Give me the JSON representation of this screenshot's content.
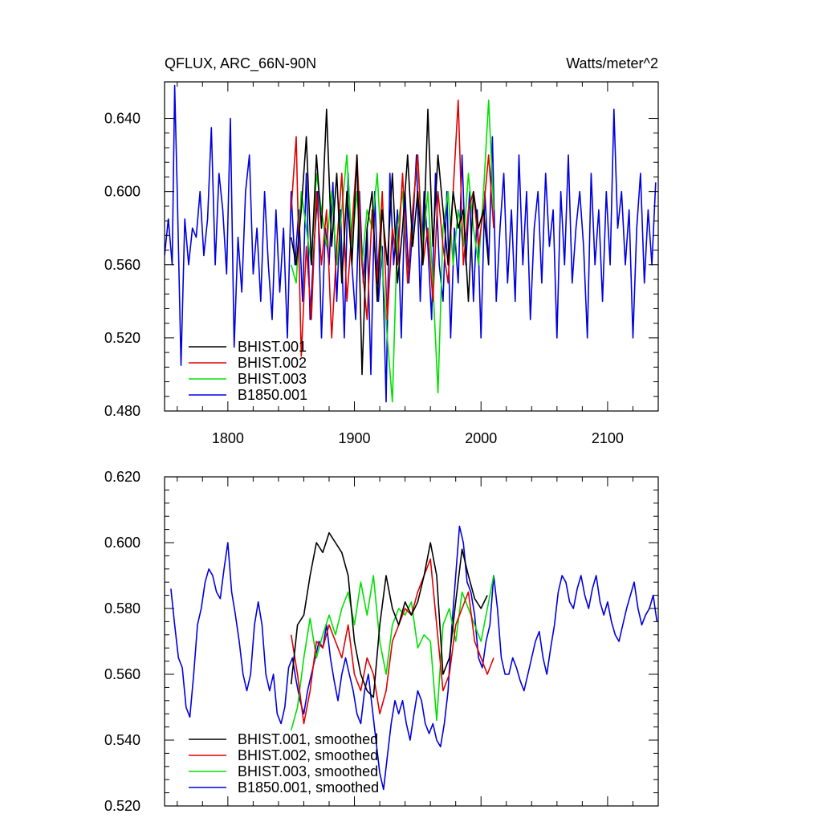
{
  "chart_data": [
    {
      "type": "line",
      "title": "QFLUX, ARC_66N-90N",
      "units": "Watts/meter^2",
      "xlim": [
        1750,
        2140
      ],
      "ylim": [
        0.48,
        0.66
      ],
      "xticks": [
        1800,
        1900,
        2000,
        2100
      ],
      "xtick_labels": [
        "1800",
        "1900",
        "2000",
        "2100"
      ],
      "yticks": [
        0.48,
        0.52,
        0.56,
        0.6,
        0.64
      ],
      "ytick_labels": [
        "0.480",
        "0.520",
        "0.560",
        "0.600",
        "0.640"
      ],
      "legend_position": "bottom-left",
      "series": [
        {
          "name": "BHIST.001",
          "color": "#000000",
          "x": [
            1850,
            1854,
            1858,
            1862,
            1866,
            1870,
            1874,
            1878,
            1882,
            1886,
            1890,
            1894,
            1898,
            1902,
            1906,
            1910,
            1914,
            1918,
            1922,
            1926,
            1930,
            1934,
            1938,
            1942,
            1946,
            1950,
            1954,
            1958,
            1962,
            1966,
            1970,
            1974,
            1978,
            1982,
            1986,
            1990,
            1994,
            1998,
            2002,
            2006
          ],
          "y": [
            0.575,
            0.56,
            0.59,
            0.63,
            0.56,
            0.62,
            0.58,
            0.645,
            0.57,
            0.61,
            0.55,
            0.6,
            0.56,
            0.62,
            0.5,
            0.58,
            0.6,
            0.54,
            0.59,
            0.56,
            0.61,
            0.55,
            0.58,
            0.62,
            0.57,
            0.6,
            0.56,
            0.645,
            0.57,
            0.62,
            0.59,
            0.56,
            0.6,
            0.58,
            0.59,
            0.54,
            0.6,
            0.58,
            0.59,
            0.56
          ]
        },
        {
          "name": "BHIST.002",
          "color": "#e00000",
          "x": [
            1850,
            1854,
            1858,
            1862,
            1866,
            1870,
            1874,
            1878,
            1882,
            1886,
            1890,
            1894,
            1898,
            1902,
            1906,
            1910,
            1914,
            1918,
            1922,
            1926,
            1930,
            1934,
            1938,
            1942,
            1946,
            1950,
            1954,
            1958,
            1962,
            1966,
            1970,
            1974,
            1978,
            1982,
            1986,
            1990,
            1994,
            1998,
            2002,
            2006,
            2010
          ],
          "y": [
            0.59,
            0.63,
            0.51,
            0.57,
            0.53,
            0.6,
            0.56,
            0.59,
            0.52,
            0.57,
            0.61,
            0.54,
            0.58,
            0.62,
            0.56,
            0.53,
            0.59,
            0.55,
            0.6,
            0.53,
            0.58,
            0.56,
            0.61,
            0.55,
            0.59,
            0.62,
            0.56,
            0.58,
            0.54,
            0.6,
            0.57,
            0.55,
            0.6,
            0.65,
            0.56,
            0.59,
            0.6,
            0.57,
            0.59,
            0.62,
            0.58
          ]
        },
        {
          "name": "BHIST.003",
          "color": "#00e000",
          "x": [
            1850,
            1854,
            1858,
            1862,
            1866,
            1870,
            1874,
            1878,
            1882,
            1886,
            1890,
            1894,
            1898,
            1902,
            1906,
            1910,
            1914,
            1918,
            1922,
            1926,
            1930,
            1934,
            1938,
            1942,
            1946,
            1950,
            1954,
            1958,
            1962,
            1966,
            1970,
            1974,
            1978,
            1982,
            1986,
            1990,
            1994,
            1998,
            2002,
            2006,
            2010
          ],
          "y": [
            0.56,
            0.55,
            0.6,
            0.58,
            0.56,
            0.61,
            0.59,
            0.57,
            0.6,
            0.56,
            0.59,
            0.62,
            0.57,
            0.6,
            0.56,
            0.59,
            0.58,
            0.61,
            0.56,
            0.52,
            0.485,
            0.58,
            0.6,
            0.55,
            0.59,
            0.62,
            0.57,
            0.6,
            0.55,
            0.49,
            0.58,
            0.6,
            0.56,
            0.59,
            0.57,
            0.61,
            0.58,
            0.56,
            0.6,
            0.65,
            0.59
          ]
        },
        {
          "name": "B1850.001",
          "color": "#0000e0",
          "x": [
            1750,
            1753,
            1756,
            1758,
            1760,
            1763,
            1766,
            1769,
            1772,
            1775,
            1778,
            1781,
            1784,
            1787,
            1790,
            1793,
            1796,
            1799,
            1802,
            1805,
            1808,
            1811,
            1814,
            1817,
            1820,
            1823,
            1826,
            1829,
            1832,
            1835,
            1838,
            1841,
            1844,
            1847,
            1850,
            1853,
            1856,
            1859,
            1862,
            1865,
            1868,
            1871,
            1874,
            1877,
            1880,
            1883,
            1886,
            1889,
            1892,
            1895,
            1898,
            1901,
            1904,
            1907,
            1910,
            1913,
            1916,
            1919,
            1922,
            1925,
            1928,
            1931,
            1934,
            1937,
            1940,
            1943,
            1946,
            1949,
            1952,
            1955,
            1958,
            1961,
            1964,
            1967,
            1970,
            1973,
            1976,
            1979,
            1982,
            1985,
            1988,
            1991,
            1994,
            1997,
            2000,
            2003,
            2006,
            2009,
            2012,
            2015,
            2018,
            2021,
            2024,
            2027,
            2030,
            2033,
            2036,
            2039,
            2042,
            2045,
            2048,
            2051,
            2054,
            2057,
            2060,
            2063,
            2066,
            2069,
            2072,
            2075,
            2078,
            2081,
            2084,
            2087,
            2090,
            2093,
            2096,
            2099,
            2102,
            2105,
            2108,
            2111,
            2114,
            2117,
            2120,
            2123,
            2126,
            2129,
            2132,
            2135,
            2138
          ],
          "y": [
            0.565,
            0.585,
            0.56,
            0.658,
            0.6,
            0.505,
            0.585,
            0.56,
            0.58,
            0.575,
            0.6,
            0.565,
            0.585,
            0.635,
            0.56,
            0.61,
            0.59,
            0.555,
            0.64,
            0.515,
            0.575,
            0.545,
            0.6,
            0.62,
            0.555,
            0.58,
            0.54,
            0.6,
            0.56,
            0.53,
            0.59,
            0.545,
            0.58,
            0.52,
            0.6,
            0.56,
            0.59,
            0.54,
            0.61,
            0.53,
            0.57,
            0.6,
            0.52,
            0.58,
            0.56,
            0.605,
            0.54,
            0.59,
            0.52,
            0.61,
            0.56,
            0.53,
            0.6,
            0.55,
            0.58,
            0.5,
            0.6,
            0.54,
            0.57,
            0.485,
            0.61,
            0.56,
            0.59,
            0.52,
            0.6,
            0.55,
            0.58,
            0.62,
            0.54,
            0.6,
            0.57,
            0.53,
            0.61,
            0.56,
            0.54,
            0.6,
            0.52,
            0.58,
            0.55,
            0.62,
            0.56,
            0.6,
            0.54,
            0.59,
            0.52,
            0.6,
            0.56,
            0.63,
            0.54,
            0.58,
            0.61,
            0.55,
            0.59,
            0.54,
            0.62,
            0.56,
            0.6,
            0.53,
            0.58,
            0.6,
            0.55,
            0.61,
            0.57,
            0.59,
            0.52,
            0.6,
            0.56,
            0.62,
            0.55,
            0.58,
            0.6,
            0.57,
            0.52,
            0.61,
            0.56,
            0.59,
            0.54,
            0.6,
            0.56,
            0.645,
            0.58,
            0.6,
            0.56,
            0.59,
            0.52,
            0.58,
            0.61,
            0.55,
            0.59,
            0.56,
            0.605
          ]
        }
      ]
    },
    {
      "type": "line",
      "title": "",
      "xlim": [
        1750,
        2140
      ],
      "ylim": [
        0.52,
        0.62
      ],
      "xticks": [
        1800,
        1900,
        2000,
        2100
      ],
      "yticks": [
        0.52,
        0.54,
        0.56,
        0.58,
        0.6,
        0.62
      ],
      "ytick_labels": [
        "0.520",
        "0.540",
        "0.560",
        "0.580",
        "0.600",
        "0.620"
      ],
      "legend_position": "bottom-left",
      "series": [
        {
          "name": "BHIST.001, smoothed",
          "color": "#000000",
          "x": [
            1850,
            1855,
            1860,
            1865,
            1870,
            1875,
            1880,
            1885,
            1890,
            1895,
            1900,
            1905,
            1910,
            1915,
            1920,
            1925,
            1930,
            1935,
            1940,
            1945,
            1950,
            1955,
            1960,
            1965,
            1970,
            1975,
            1980,
            1985,
            1990,
            1995,
            2000,
            2005
          ],
          "y": [
            0.557,
            0.575,
            0.578,
            0.59,
            0.6,
            0.597,
            0.603,
            0.6,
            0.597,
            0.59,
            0.57,
            0.56,
            0.555,
            0.553,
            0.575,
            0.59,
            0.58,
            0.575,
            0.582,
            0.578,
            0.582,
            0.59,
            0.6,
            0.59,
            0.56,
            0.565,
            0.582,
            0.598,
            0.59,
            0.583,
            0.58,
            0.584
          ]
        },
        {
          "name": "BHIST.002, smoothed",
          "color": "#e00000",
          "x": [
            1850,
            1855,
            1860,
            1865,
            1870,
            1875,
            1880,
            1885,
            1890,
            1895,
            1900,
            1905,
            1910,
            1915,
            1920,
            1925,
            1930,
            1935,
            1940,
            1945,
            1950,
            1955,
            1960,
            1965,
            1970,
            1975,
            1980,
            1985,
            1990,
            1995,
            2000,
            2005,
            2010
          ],
          "y": [
            0.572,
            0.56,
            0.545,
            0.555,
            0.57,
            0.568,
            0.575,
            0.57,
            0.565,
            0.575,
            0.56,
            0.555,
            0.565,
            0.56,
            0.548,
            0.555,
            0.57,
            0.575,
            0.58,
            0.578,
            0.585,
            0.59,
            0.595,
            0.575,
            0.555,
            0.56,
            0.575,
            0.58,
            0.585,
            0.57,
            0.565,
            0.56,
            0.565
          ]
        },
        {
          "name": "BHIST.003, smoothed",
          "color": "#00e000",
          "x": [
            1850,
            1855,
            1860,
            1865,
            1870,
            1875,
            1880,
            1885,
            1890,
            1895,
            1900,
            1905,
            1910,
            1915,
            1920,
            1925,
            1930,
            1935,
            1940,
            1945,
            1950,
            1955,
            1960,
            1965,
            1970,
            1975,
            1980,
            1985,
            1990,
            1995,
            2000,
            2005,
            2010
          ],
          "y": [
            0.543,
            0.55,
            0.565,
            0.577,
            0.565,
            0.572,
            0.578,
            0.572,
            0.58,
            0.585,
            0.575,
            0.588,
            0.578,
            0.59,
            0.57,
            0.56,
            0.575,
            0.58,
            0.578,
            0.582,
            0.568,
            0.572,
            0.57,
            0.546,
            0.575,
            0.58,
            0.57,
            0.585,
            0.58,
            0.575,
            0.57,
            0.58,
            0.59
          ]
        },
        {
          "name": "B1850.001, smoothed",
          "color": "#0000e0",
          "x": [
            1755,
            1758,
            1761,
            1764,
            1767,
            1770,
            1773,
            1776,
            1779,
            1782,
            1785,
            1788,
            1791,
            1794,
            1797,
            1800,
            1803,
            1806,
            1809,
            1812,
            1815,
            1818,
            1821,
            1824,
            1827,
            1830,
            1833,
            1836,
            1839,
            1842,
            1845,
            1848,
            1851,
            1854,
            1857,
            1860,
            1863,
            1866,
            1869,
            1872,
            1875,
            1878,
            1881,
            1884,
            1887,
            1890,
            1893,
            1896,
            1899,
            1902,
            1905,
            1908,
            1911,
            1914,
            1917,
            1920,
            1923,
            1926,
            1929,
            1932,
            1935,
            1938,
            1941,
            1944,
            1947,
            1950,
            1953,
            1956,
            1959,
            1962,
            1965,
            1968,
            1971,
            1974,
            1977,
            1980,
            1983,
            1986,
            1989,
            1992,
            1995,
            1998,
            2001,
            2004,
            2007,
            2010,
            2013,
            2016,
            2019,
            2022,
            2025,
            2028,
            2031,
            2034,
            2037,
            2040,
            2043,
            2046,
            2049,
            2052,
            2055,
            2058,
            2061,
            2064,
            2067,
            2070,
            2073,
            2076,
            2079,
            2082,
            2085,
            2088,
            2091,
            2094,
            2097,
            2100,
            2103,
            2106,
            2109,
            2112,
            2115,
            2118,
            2121,
            2124,
            2127,
            2130,
            2133,
            2136,
            2139
          ],
          "y": [
            0.586,
            0.575,
            0.565,
            0.562,
            0.55,
            0.547,
            0.56,
            0.575,
            0.58,
            0.588,
            0.592,
            0.59,
            0.585,
            0.583,
            0.592,
            0.6,
            0.585,
            0.578,
            0.57,
            0.56,
            0.555,
            0.56,
            0.575,
            0.582,
            0.575,
            0.56,
            0.555,
            0.56,
            0.548,
            0.545,
            0.55,
            0.562,
            0.565,
            0.558,
            0.552,
            0.548,
            0.555,
            0.56,
            0.565,
            0.57,
            0.568,
            0.575,
            0.565,
            0.558,
            0.552,
            0.56,
            0.565,
            0.56,
            0.555,
            0.548,
            0.545,
            0.555,
            0.56,
            0.55,
            0.54,
            0.53,
            0.525,
            0.535,
            0.545,
            0.552,
            0.548,
            0.552,
            0.545,
            0.54,
            0.548,
            0.555,
            0.552,
            0.545,
            0.542,
            0.545,
            0.54,
            0.538,
            0.545,
            0.555,
            0.575,
            0.59,
            0.605,
            0.6,
            0.588,
            0.585,
            0.578,
            0.565,
            0.562,
            0.57,
            0.575,
            0.59,
            0.58,
            0.565,
            0.56,
            0.56,
            0.565,
            0.562,
            0.558,
            0.555,
            0.56,
            0.565,
            0.57,
            0.573,
            0.565,
            0.56,
            0.568,
            0.575,
            0.585,
            0.59,
            0.588,
            0.582,
            0.58,
            0.586,
            0.59,
            0.584,
            0.58,
            0.586,
            0.59,
            0.582,
            0.578,
            0.582,
            0.576,
            0.572,
            0.57,
            0.575,
            0.58,
            0.584,
            0.588,
            0.58,
            0.575,
            0.578,
            0.58,
            0.584,
            0.576
          ]
        }
      ]
    }
  ]
}
